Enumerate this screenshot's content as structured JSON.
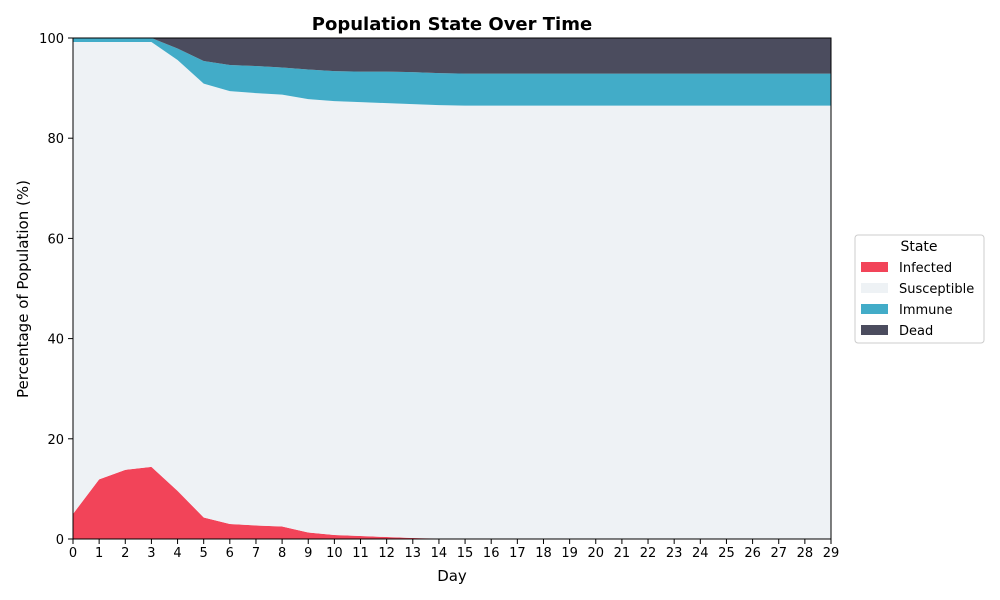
{
  "chart_data": {
    "type": "area",
    "stacked": true,
    "title": "Population State Over Time",
    "xlabel": "Day",
    "ylabel": "Percentage of Population (%)",
    "xlim": [
      0,
      29
    ],
    "ylim": [
      0,
      100
    ],
    "x": [
      0,
      1,
      2,
      3,
      4,
      5,
      6,
      7,
      8,
      9,
      10,
      11,
      12,
      13,
      14,
      15,
      16,
      17,
      18,
      19,
      20,
      21,
      22,
      23,
      24,
      25,
      26,
      27,
      28,
      29
    ],
    "x_ticks": [
      "0",
      "1",
      "2",
      "3",
      "4",
      "5",
      "6",
      "7",
      "8",
      "9",
      "10",
      "11",
      "12",
      "13",
      "14",
      "15",
      "16",
      "17",
      "18",
      "19",
      "20",
      "21",
      "22",
      "23",
      "24",
      "25",
      "26",
      "27",
      "28",
      "29"
    ],
    "y_ticks": [
      0,
      20,
      40,
      60,
      80,
      100
    ],
    "grid": false,
    "legend": {
      "title": "State",
      "placement": "outside-right"
    },
    "series": [
      {
        "name": "Infected",
        "color": "#f24459",
        "values": [
          5.0,
          11.9,
          13.8,
          14.4,
          9.6,
          4.3,
          3.0,
          2.7,
          2.5,
          1.3,
          0.8,
          0.6,
          0.4,
          0.2,
          0.1,
          0,
          0,
          0,
          0,
          0,
          0,
          0,
          0,
          0,
          0,
          0,
          0,
          0,
          0,
          0
        ]
      },
      {
        "name": "Susceptible",
        "color": "#eef2f5",
        "values": [
          94.2,
          87.3,
          85.4,
          84.8,
          86.0,
          86.6,
          86.4,
          86.3,
          86.2,
          86.5,
          86.6,
          86.6,
          86.6,
          86.6,
          86.5,
          86.5,
          86.5,
          86.5,
          86.5,
          86.5,
          86.5,
          86.5,
          86.5,
          86.5,
          86.5,
          86.5,
          86.5,
          86.5,
          86.5,
          86.5
        ]
      },
      {
        "name": "Immune",
        "color": "#42acc8",
        "values": [
          0.8,
          0.8,
          0.8,
          0.8,
          2.3,
          4.5,
          5.2,
          5.4,
          5.4,
          5.9,
          6.0,
          6.1,
          6.3,
          6.4,
          6.4,
          6.4,
          6.4,
          6.4,
          6.4,
          6.4,
          6.4,
          6.4,
          6.4,
          6.4,
          6.4,
          6.4,
          6.4,
          6.4,
          6.4,
          6.4
        ]
      },
      {
        "name": "Dead",
        "color": "#4b4c5e",
        "values": [
          0,
          0,
          0,
          0,
          2.1,
          4.6,
          5.4,
          5.6,
          5.9,
          6.3,
          6.6,
          6.7,
          6.7,
          6.8,
          7.0,
          7.1,
          7.1,
          7.1,
          7.1,
          7.1,
          7.1,
          7.1,
          7.1,
          7.1,
          7.1,
          7.1,
          7.1,
          7.1,
          7.1,
          7.1
        ]
      }
    ]
  }
}
